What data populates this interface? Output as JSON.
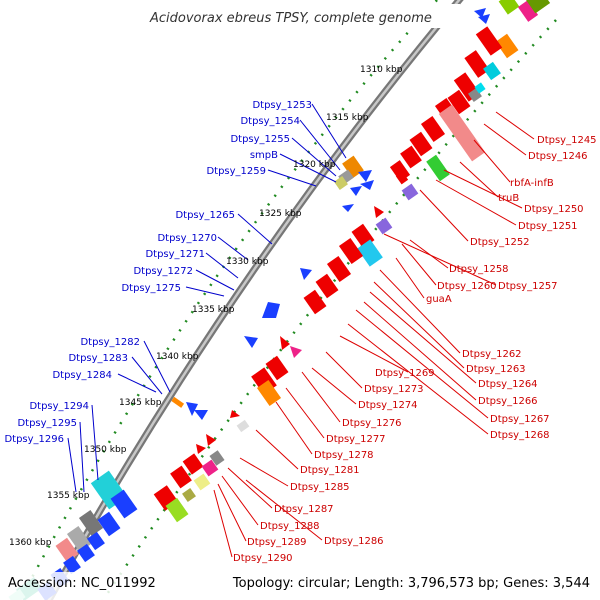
{
  "title": "Acidovorax ebreus TPSY, complete genome",
  "footer": {
    "accession": "Accession: NC_011992",
    "topology": "Topology: circular; Length: 3,796,573 bp; Genes: 3,544"
  },
  "scale_labels": [
    "1310 kbp",
    "1315 kbp",
    "1320 kbp",
    "1325 kbp",
    "1330 kbp",
    "1335 kbp",
    "1340 kbp",
    "1345 kbp",
    "1350 kbp",
    "1355 kbp",
    "1360 kbp"
  ],
  "left_labels": [
    "Dtpsy_1253",
    "Dtpsy_1254",
    "Dtpsy_1255",
    "smpB",
    "Dtpsy_1259",
    "Dtpsy_1265",
    "Dtpsy_1270",
    "Dtpsy_1271",
    "Dtpsy_1272",
    "Dtpsy_1275",
    "Dtpsy_1282",
    "Dtpsy_1283",
    "Dtpsy_1284",
    "Dtpsy_1294",
    "Dtpsy_1295",
    "Dtpsy_1296"
  ],
  "right_labels": [
    "Dtpsy_1245",
    "Dtpsy_1246",
    "rbfA-infB",
    "truB",
    "Dtpsy_1250",
    "Dtpsy_1251",
    "Dtpsy_1252",
    "Dtpsy_1258",
    "Dtpsy_1260",
    "Dtpsy_1257",
    "guaA",
    "Dtpsy_1262",
    "Dtpsy_1263",
    "Dtpsy_1264",
    "Dtpsy_1266",
    "Dtpsy_1267",
    "Dtpsy_1268",
    "Dtpsy_1269",
    "Dtpsy_1273",
    "Dtpsy_1274",
    "Dtpsy_1276",
    "Dtpsy_1277",
    "Dtpsy_1278",
    "Dtpsy_1281",
    "Dtpsy_1285",
    "Dtpsy_1287",
    "Dtpsy_1288",
    "Dtpsy_1289",
    "Dtpsy_1290",
    "Dtpsy_1286"
  ],
  "colors": {
    "forward_cds": "#ee0000",
    "reverse_cds": "#0000dd",
    "left_label": "#0000cc",
    "right_label": "#cc0000",
    "backbone": "#8a8a8a",
    "tick": "#228b22",
    "title": "#333333"
  }
}
